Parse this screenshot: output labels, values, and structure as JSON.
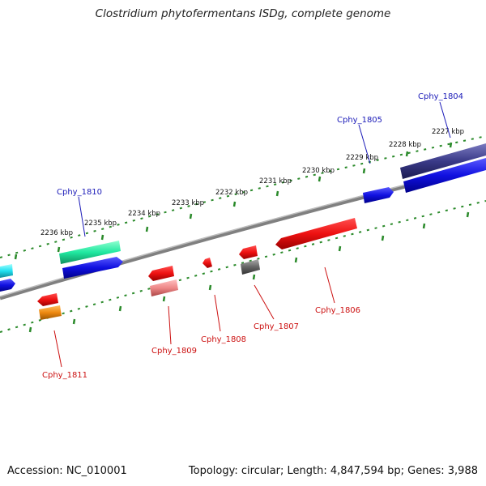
{
  "title": "Clostridium phytofermentans ISDg, complete genome",
  "footer": {
    "accession": "Accession: NC_010001",
    "topology": "Topology: circular; Length: 4,847,594 bp; Genes: 3,988"
  },
  "ticks": [
    "2227 kbp",
    "2228 kbp",
    "2229 kbp",
    "2230 kbp",
    "2231 kbp",
    "2232 kbp",
    "2233 kbp",
    "2234 kbp",
    "2235 kbp",
    "2236 kbp"
  ],
  "genes": {
    "plus_labels": [
      "Cphy_1804",
      "Cphy_1805",
      "Cphy_1810"
    ],
    "minus_labels": [
      "Cphy_1806",
      "Cphy_1807",
      "Cphy_1808",
      "Cphy_1809",
      "Cphy_1811"
    ]
  },
  "colors": {
    "plus_label": "#1a1ab8",
    "minus_label": "#cc1111",
    "tick": "#2a8a2a",
    "backbone": "#808080",
    "blue_gene": "#1010e0",
    "red_gene": "#ee1111",
    "teal_gene": "#20e8a0",
    "cyan_gene": "#20e0f0",
    "navy_gene": "#3a3a88",
    "orange_gene": "#ee8810",
    "pink_gene": "#ee8888",
    "gray_gene": "#666666"
  }
}
